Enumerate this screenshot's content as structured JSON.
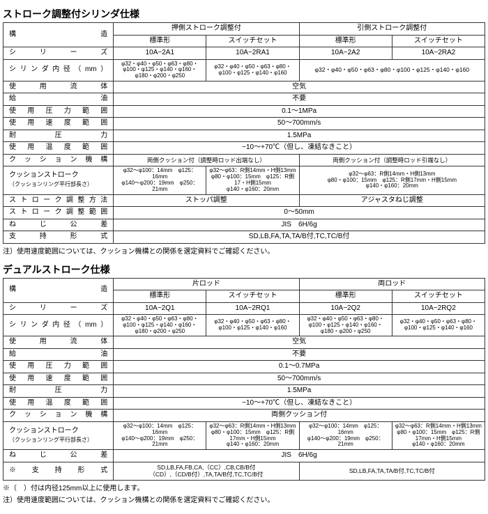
{
  "t1": {
    "title": "ストローク調整付シリンダ仕様",
    "h_kozo": "構　　　　　　　　造",
    "h_g1": "押側ストローク調整付",
    "h_g2": "引側ストローク調整付",
    "h_std": "標準形",
    "h_sw": "スイッチセット",
    "series_l": "シ　　リ　　ー　　ズ",
    "series": [
      "10A−2A1",
      "10A−2RA1",
      "10A−2A2",
      "10A−2RA2"
    ],
    "bore_l": "シリンダ内径（mm）",
    "bore_1": "φ32・φ40・φ50・φ63・φ80・φ100・φ125・φ140・φ160・φ180・φ200・φ250",
    "bore_2": "φ32・φ40・φ50・φ63・φ80・φ100・φ125・φ140・φ160",
    "bore_34": "φ32・φ40・φ50・φ63・φ80・φ100・φ125・φ140・φ160",
    "fluid_l": "使　用　流　体",
    "fluid": "空気",
    "lube_l": "給　　　　　　　　油",
    "lube": "不要",
    "press_l": "使 用 圧 力 範 囲",
    "press": "0.1〜1MPa",
    "speed_l": "使 用 速 度 範 囲",
    "speed": "50〜700mm/s",
    "proof_l": "耐　　　圧　　　力",
    "proof": "1.5MPa",
    "temp_l": "使 用 温 度 範 囲",
    "temp": "−10〜+70℃（但し、凍結なきこと）",
    "cush_l": "ク ッ シ ョ ン 機 構",
    "cush_12": "両側クッション付（調整時ロッド出端なし）",
    "cush_34": "両側クッション付（調整時ロッド引端なし）",
    "cstk_l1": "クッションストローク",
    "cstk_l2": "（クッションリング平行部長さ）",
    "cstk_1": "φ32〜φ100：14mm　φ125：16mm\nφ140〜φ200：19mm　φ250：21mm",
    "cstk_2": "φ32〜φ63：R側14mm・H側13mm\nφ80・φ100：15mm　φ125：R側17・H側15mm\nφ140・φ160：20mm",
    "cstk_3": "φ32〜φ63：R側14mm・H側13mm\nφ80・φ100：15mm　φ125：R側17mm・H側15mm\nφ140・φ160：20mm",
    "adj_l": "ストローク調整方法",
    "adj_12": "ストッパ調整",
    "adj_34": "アジャスタねじ調整",
    "rng_l": "ストローク調整範囲",
    "rng": "0〜50mm",
    "thr_l": "ね　じ　公　差",
    "thr": "JIS　6H/6g",
    "sup_l": "支　持　形　式",
    "sup": "SD,LB,FA,TA,TA/B付,TC,TC/B付",
    "note": "注）使用速度範囲については、クッション機構との関係を選定資料でご確認ください。"
  },
  "t2": {
    "title": "デュアルストローク仕様",
    "h_kozo": "構　　　　　　　　造",
    "h_g1": "片ロッド",
    "h_g2": "両ロッド",
    "h_std": "標準形",
    "h_sw": "スイッチセット",
    "series_l": "シ　　リ　　ー　　ズ",
    "series": [
      "10A−2Q1",
      "10A−2RQ1",
      "10A−2Q2",
      "10A−2RQ2"
    ],
    "bore_l": "シリンダ内径（mm）",
    "bore_a": "φ32・φ40・φ50・φ63・φ80・φ100・φ125・φ140・φ160・φ180・φ200・φ250",
    "bore_b": "φ32・φ40・φ50・φ63・φ80・φ100・φ125・φ140・φ160",
    "fluid_l": "使　用　流　体",
    "fluid": "空気",
    "lube_l": "給　　　　　　　　油",
    "lube": "不要",
    "press_l": "使 用 圧 力 範 囲",
    "press": "0.1〜0.7MPa",
    "speed_l": "使 用 速 度 範 囲",
    "speed": "50〜700mm/s",
    "proof_l": "耐　　　圧　　　力",
    "proof": "1.5MPa",
    "temp_l": "使 用 温 度 範 囲",
    "temp": "−10〜+70℃（但し、凍結なきこと）",
    "cush_l": "ク ッ シ ョ ン 機 構",
    "cush": "両側クッション付",
    "cstk_l1": "クッションストローク",
    "cstk_l2": "（クッションリング平行部長さ）",
    "cstk_a": "φ32〜φ100：14mm　φ125：16mm\nφ140〜φ200：19mm　φ250：21mm",
    "cstk_b": "φ32〜φ63：R側14mm・H側13mm\nφ80・φ100：15mm　φ125：R側17mm・H側15mm\nφ140・φ160：20mm",
    "thr_l": "ね　じ　公　差",
    "thr": "JIS　6H/6g",
    "sup_l": "※　支　持　形　式",
    "sup_12": "SD,LB,FA,FB,CA,（CC）,CB,CB/B付\n（CD）,（CD/B付）,TA,TA/B付,TC,TC/B付",
    "sup_34": "SD,LB,FA,TA,TA/B付,TC,TC/B付",
    "note1": "※（　）付は内径125mm以上に使用します。",
    "note2": "注）使用速度範囲については、クッション機構との関係を選定資料でご確認ください。"
  }
}
